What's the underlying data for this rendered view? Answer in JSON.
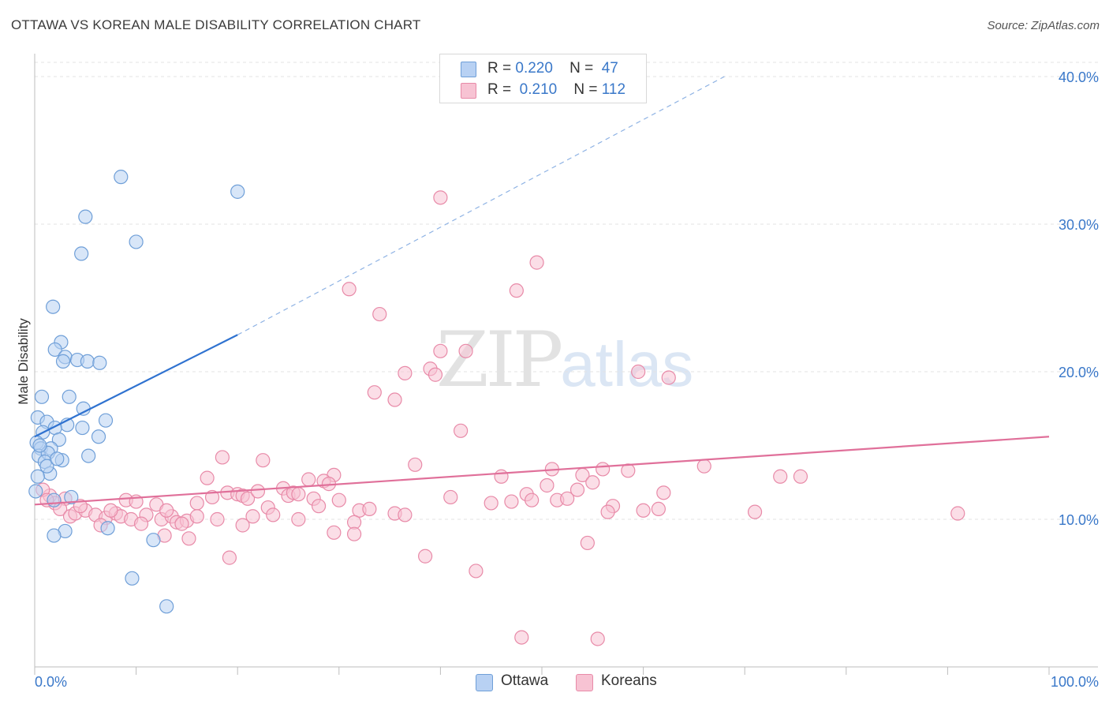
{
  "title": "OTTAWA VS KOREAN MALE DISABILITY CORRELATION CHART",
  "source": "Source: ZipAtlas.com",
  "watermark": {
    "zip": "ZIP",
    "atlas": "atlas"
  },
  "legend": {
    "ottawa": {
      "r_label": "R =",
      "r_value": "0.220",
      "n_label": "N =",
      "n_value": "47"
    },
    "koreans": {
      "r_label": "R =",
      "r_value": "0.210",
      "n_label": "N =",
      "n_value": "112"
    }
  },
  "bottom_legend": {
    "ottawa": "Ottawa",
    "koreans": "Koreans"
  },
  "colors": {
    "ottawa_fill": "#b8d1f3",
    "ottawa_stroke": "#6f9fd8",
    "ottawa_line": "#2f72d0",
    "koreans_fill": "#f7c3d3",
    "koreans_stroke": "#e88aa8",
    "koreans_line": "#e0709a",
    "tick_label": "#3a78c9",
    "grid": "#e3e3e3"
  },
  "chart_data": {
    "type": "scatter",
    "title": "OTTAWA VS KOREAN MALE DISABILITY CORRELATION CHART",
    "xlabel": "",
    "ylabel": "Male Disability",
    "xlim": [
      0,
      100
    ],
    "ylim": [
      0,
      40
    ],
    "x_tick_labels": [
      "0.0%",
      "100.0%"
    ],
    "y_ticks": [
      10,
      20,
      30,
      40
    ],
    "y_tick_labels": [
      "10.0%",
      "20.0%",
      "30.0%",
      "40.0%"
    ],
    "series": [
      {
        "name": "Ottawa",
        "r": 0.22,
        "n": 47,
        "trend": {
          "x0": 0,
          "y0": 15.6,
          "x1": 20,
          "y1": 22.5,
          "dash_to_x": 68,
          "dash_to_y": 40
        },
        "points": [
          [
            8.5,
            33.2
          ],
          [
            20.0,
            32.2
          ],
          [
            5.0,
            30.5
          ],
          [
            10.0,
            28.8
          ],
          [
            4.6,
            28.0
          ],
          [
            1.8,
            24.4
          ],
          [
            2.6,
            22.0
          ],
          [
            2.0,
            21.5
          ],
          [
            3.0,
            21.0
          ],
          [
            2.8,
            20.7
          ],
          [
            4.2,
            20.8
          ],
          [
            5.2,
            20.7
          ],
          [
            6.4,
            20.6
          ],
          [
            0.7,
            18.3
          ],
          [
            3.4,
            18.3
          ],
          [
            4.8,
            17.5
          ],
          [
            0.3,
            16.9
          ],
          [
            1.2,
            16.6
          ],
          [
            3.2,
            16.4
          ],
          [
            7.0,
            16.7
          ],
          [
            2.0,
            16.2
          ],
          [
            4.7,
            16.2
          ],
          [
            0.8,
            15.9
          ],
          [
            6.3,
            15.6
          ],
          [
            0.2,
            15.2
          ],
          [
            2.4,
            15.4
          ],
          [
            0.6,
            14.8
          ],
          [
            1.6,
            14.8
          ],
          [
            0.4,
            14.3
          ],
          [
            1.3,
            14.5
          ],
          [
            5.3,
            14.3
          ],
          [
            1.0,
            13.9
          ],
          [
            2.7,
            14.0
          ],
          [
            1.5,
            13.1
          ],
          [
            0.3,
            12.9
          ],
          [
            0.1,
            11.9
          ],
          [
            3.6,
            11.5
          ],
          [
            1.9,
            11.3
          ],
          [
            3.0,
            9.2
          ],
          [
            7.2,
            9.4
          ],
          [
            1.9,
            8.9
          ],
          [
            11.7,
            8.6
          ],
          [
            9.6,
            6.0
          ],
          [
            13.0,
            4.1
          ],
          [
            1.2,
            13.6
          ],
          [
            0.5,
            15.0
          ],
          [
            2.2,
            14.1
          ]
        ]
      },
      {
        "name": "Koreans",
        "r": 0.21,
        "n": 112,
        "trend": {
          "x0": 0,
          "y0": 11.0,
          "x1": 100,
          "y1": 15.6
        },
        "points": [
          [
            40.0,
            31.8
          ],
          [
            49.5,
            27.4
          ],
          [
            31.0,
            25.6
          ],
          [
            47.5,
            25.5
          ],
          [
            34.0,
            23.9
          ],
          [
            40.0,
            21.4
          ],
          [
            42.5,
            21.4
          ],
          [
            36.5,
            19.9
          ],
          [
            39.0,
            20.2
          ],
          [
            39.5,
            19.8
          ],
          [
            59.5,
            20.0
          ],
          [
            62.5,
            19.6
          ],
          [
            33.5,
            18.6
          ],
          [
            35.5,
            18.1
          ],
          [
            42.0,
            16.0
          ],
          [
            18.5,
            14.2
          ],
          [
            22.5,
            14.0
          ],
          [
            37.5,
            13.7
          ],
          [
            51.0,
            13.4
          ],
          [
            56.0,
            13.4
          ],
          [
            66.0,
            13.6
          ],
          [
            54.0,
            13.0
          ],
          [
            58.5,
            13.3
          ],
          [
            73.5,
            12.9
          ],
          [
            75.5,
            12.9
          ],
          [
            29.5,
            13.0
          ],
          [
            46.0,
            12.9
          ],
          [
            17.0,
            12.8
          ],
          [
            27.0,
            12.7
          ],
          [
            28.5,
            12.6
          ],
          [
            29.0,
            12.4
          ],
          [
            24.5,
            12.1
          ],
          [
            50.5,
            12.3
          ],
          [
            53.5,
            12.0
          ],
          [
            55.0,
            12.5
          ],
          [
            62.0,
            11.8
          ],
          [
            19.0,
            11.8
          ],
          [
            20.0,
            11.7
          ],
          [
            20.5,
            11.6
          ],
          [
            25.0,
            11.6
          ],
          [
            25.5,
            11.8
          ],
          [
            26.0,
            11.7
          ],
          [
            27.5,
            11.4
          ],
          [
            30.0,
            11.3
          ],
          [
            41.0,
            11.5
          ],
          [
            47.0,
            11.2
          ],
          [
            48.5,
            11.7
          ],
          [
            49.0,
            11.3
          ],
          [
            51.5,
            11.3
          ],
          [
            52.5,
            11.4
          ],
          [
            1.5,
            11.6
          ],
          [
            2.0,
            11.1
          ],
          [
            3.0,
            11.4
          ],
          [
            9.0,
            11.3
          ],
          [
            10.0,
            11.2
          ],
          [
            12.0,
            11.0
          ],
          [
            16.0,
            11.1
          ],
          [
            21.0,
            11.4
          ],
          [
            23.0,
            10.8
          ],
          [
            28.0,
            10.9
          ],
          [
            32.0,
            10.6
          ],
          [
            57.0,
            10.9
          ],
          [
            60.0,
            10.6
          ],
          [
            61.5,
            10.7
          ],
          [
            71.0,
            10.5
          ],
          [
            91.0,
            10.4
          ],
          [
            56.5,
            10.5
          ],
          [
            2.5,
            10.7
          ],
          [
            3.5,
            10.2
          ],
          [
            4.0,
            10.4
          ],
          [
            5.0,
            10.6
          ],
          [
            6.0,
            10.3
          ],
          [
            7.0,
            10.1
          ],
          [
            8.0,
            10.4
          ],
          [
            8.5,
            10.2
          ],
          [
            9.5,
            10.0
          ],
          [
            11.0,
            10.3
          ],
          [
            12.5,
            10.0
          ],
          [
            13.5,
            10.2
          ],
          [
            14.0,
            9.8
          ],
          [
            15.0,
            9.9
          ],
          [
            16.0,
            10.2
          ],
          [
            18.0,
            10.0
          ],
          [
            21.5,
            10.2
          ],
          [
            23.5,
            10.3
          ],
          [
            26.0,
            10.0
          ],
          [
            31.5,
            9.8
          ],
          [
            35.5,
            10.4
          ],
          [
            36.5,
            10.3
          ],
          [
            6.5,
            9.6
          ],
          [
            10.5,
            9.7
          ],
          [
            14.5,
            9.7
          ],
          [
            20.5,
            9.6
          ],
          [
            29.5,
            9.1
          ],
          [
            31.5,
            9.0
          ],
          [
            12.8,
            8.9
          ],
          [
            15.2,
            8.7
          ],
          [
            54.5,
            8.4
          ],
          [
            19.2,
            7.4
          ],
          [
            38.5,
            7.5
          ],
          [
            43.5,
            6.5
          ],
          [
            48.0,
            2.0
          ],
          [
            55.5,
            1.9
          ],
          [
            0.8,
            12.0
          ],
          [
            1.2,
            11.3
          ],
          [
            4.5,
            10.9
          ],
          [
            7.5,
            10.6
          ],
          [
            13.0,
            10.6
          ],
          [
            17.5,
            11.5
          ],
          [
            22.0,
            11.9
          ],
          [
            33.0,
            10.7
          ],
          [
            45.0,
            11.1
          ]
        ]
      }
    ]
  }
}
